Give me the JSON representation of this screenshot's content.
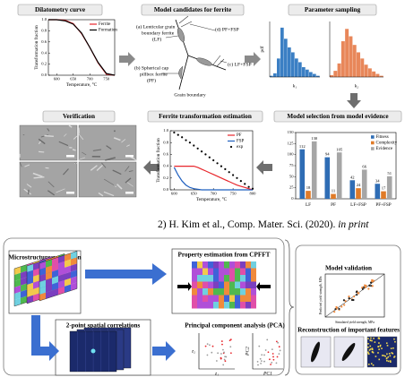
{
  "panels": {
    "model_candidates": {
      "title": "Model candidates for ferrite",
      "label_a": [
        "(a) Lenticular grain",
        "boundary ferrite",
        "(LF)"
      ],
      "label_b": [
        "(b) Spherical cap",
        "pillbox ferrite",
        "(PF)"
      ],
      "label_c": "(c) LF+FSP",
      "label_d": "(d) PF+FSP",
      "grain_boundary": "Grain boundary"
    },
    "verification": {
      "title": "Verification"
    }
  },
  "citation": {
    "text": "2) H. Kim et al., Comp. Mater. Sci. (2020).",
    "emphasis": "in print"
  },
  "workflow": {
    "microstructure": "Microstructure generation",
    "property": "Property estimation from CPFFT",
    "correlations": "2-point spatial correlations",
    "pca": {
      "title": "Principal component analysis (PCA)",
      "plot1": {
        "ylabel": "z₂",
        "xlabel": "z₁"
      },
      "plot2": {
        "ylabel": "PC2",
        "xlabel": "PC1"
      }
    },
    "validation": {
      "title": "Model validation",
      "ylabel": "Predicted yield strength, MPa",
      "xlabel": "Simulated yield strength, MPa"
    },
    "reconstruction": "Reconstruction of important features"
  },
  "chart_data": [
    {
      "type": "line",
      "title": "Dilatometry curve",
      "xlabel": "Temperature, °C",
      "ylabel": "Transformation fraction",
      "x": [
        575,
        600,
        625,
        650,
        675,
        700,
        725,
        750,
        775
      ],
      "series": [
        {
          "name": "Ferrite",
          "color": "#e8262b",
          "values": [
            1,
            1,
            0.99,
            0.93,
            0.75,
            0.5,
            0.22,
            0.02,
            0
          ]
        },
        {
          "name": "Formation",
          "color": "#000000",
          "values": [
            1,
            1,
            0.98,
            0.92,
            0.76,
            0.5,
            0.23,
            0.03,
            0
          ]
        }
      ],
      "xlim": [
        575,
        775
      ],
      "xticks": [
        600,
        650,
        700,
        750
      ],
      "ylim": [
        0,
        1
      ],
      "yticks": [
        {
          "value": 0,
          "label": "0.0"
        },
        0.2,
        0.4,
        0.6,
        0.8,
        {
          "value": 1,
          "label": "1.0"
        }
      ],
      "legend": "upper right"
    },
    {
      "type": "bar",
      "title": "Parameter sampling",
      "ylabel": "pdf",
      "subplots": true,
      "categories": [
        null,
        null,
        null,
        null,
        null,
        null,
        null,
        null,
        null,
        null,
        null,
        null,
        null,
        null
      ],
      "series": [
        {
          "name": "k₁",
          "color": "#3b7fc4",
          "values": [
            2,
            6,
            30,
            80,
            62,
            48,
            40,
            30,
            24,
            16,
            12,
            8,
            5,
            2
          ]
        },
        {
          "name": "k₂",
          "color": "#e8875a",
          "values": [
            3,
            10,
            22,
            58,
            78,
            66,
            52,
            40,
            30,
            20,
            14,
            9,
            5,
            2
          ]
        }
      ],
      "ylim": [
        0,
        90
      ]
    },
    {
      "type": "line",
      "title": "Ferrite transformation estimation",
      "xlabel": "Temperature, °C",
      "ylabel": "Transformation fraction",
      "x": [
        600,
        610,
        620,
        630,
        640,
        650,
        660,
        670,
        680,
        690,
        700,
        710,
        720,
        730,
        740,
        750,
        760,
        770,
        780,
        790,
        800
      ],
      "series": [
        {
          "name": "PF",
          "color": "#e8262b",
          "values": [
            0.4,
            0.4,
            0.4,
            0.4,
            0.4,
            0.4,
            0.38,
            0.35,
            0.32,
            0.29,
            0.26,
            0.23,
            0.2,
            0.17,
            0.14,
            0.11,
            0.08,
            0.06,
            0.04,
            0.02,
            0
          ]
        },
        {
          "name": "FSP",
          "color": "#1f5fbf",
          "values": [
            0.38,
            0.25,
            0.15,
            0.08,
            0.04,
            0.02,
            0.01,
            0,
            0,
            0,
            0,
            0,
            0,
            0,
            0,
            0,
            0,
            0,
            0,
            0,
            0
          ]
        },
        {
          "name": "exp",
          "color": "#000000",
          "style": "dots",
          "values": [
            0.97,
            0.93,
            0.89,
            0.84,
            0.8,
            0.75,
            0.7,
            0.65,
            0.6,
            0.55,
            0.5,
            0.45,
            0.4,
            0.35,
            0.3,
            0.25,
            0.2,
            0.15,
            0.1,
            0.05,
            0.02
          ]
        }
      ],
      "xlim": [
        590,
        800
      ],
      "xticks": [
        600,
        650,
        700,
        750,
        800
      ],
      "ylim": [
        0,
        1
      ],
      "yticks": [
        {
          "value": 0,
          "label": "0.0"
        },
        0.2,
        0.4,
        0.6,
        0.8,
        {
          "value": 1,
          "label": "1.0"
        }
      ],
      "legend": "upper right"
    },
    {
      "type": "bar",
      "title": "Model selection from model evidence",
      "categories": [
        "LF",
        "PF",
        "LF+FSP",
        "PF+FSP"
      ],
      "series": [
        {
          "name": "Fitness",
          "color": "#2f6db5",
          "values": [
            112,
            94,
            42,
            34
          ]
        },
        {
          "name": "Complexity",
          "color": "#e07b28",
          "values": [
            18,
            11,
            24,
            17
          ]
        },
        {
          "name": "Evidence",
          "color": "#a6a6a6",
          "values": [
            130,
            105,
            66,
            51
          ]
        }
      ],
      "ylim": [
        0,
        150
      ],
      "yticks": [
        0,
        25,
        50,
        75,
        100,
        125,
        150
      ],
      "legend": "upper right"
    }
  ]
}
